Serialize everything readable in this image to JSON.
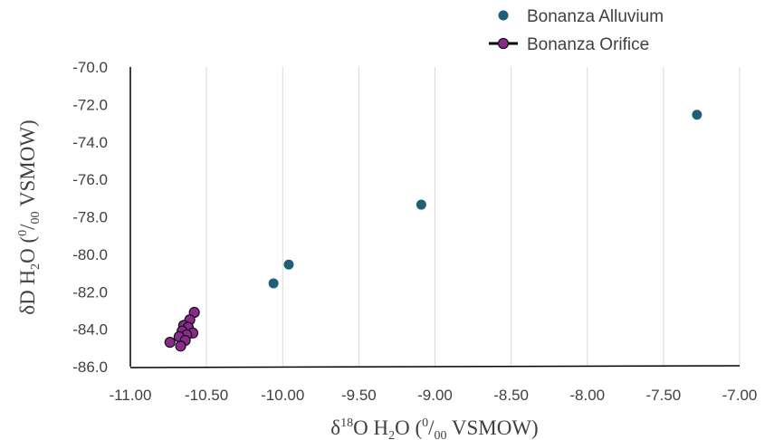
{
  "chart_data": {
    "type": "scatter",
    "xlabel": {
      "pre": "δ",
      "sup": "18",
      "mid": "O  H",
      "sub": "2",
      "post": "O (",
      "sup2": "0",
      "slash": "/",
      "sub2": "00",
      "end": " VSMOW)"
    },
    "ylabel": {
      "pre": "δD  H",
      "sub": "2",
      "post": "O (",
      "sup": "0",
      "slash": "/",
      "sub2": "00",
      "end": " VSMOW)"
    },
    "xlim": [
      -11.0,
      -7.0
    ],
    "ylim": [
      -86.0,
      -70.0
    ],
    "x_ticks": [
      -11.0,
      -10.5,
      -10.0,
      -9.5,
      -9.0,
      -8.5,
      -8.0,
      -7.5,
      -7.0
    ],
    "x_tick_labels": [
      "-11.00",
      "-10.50",
      "-10.00",
      "-9.50",
      "-9.00",
      "-8.50",
      "-8.00",
      "-7.50",
      "-7.00"
    ],
    "y_ticks": [
      -86.0,
      -84.0,
      -82.0,
      -80.0,
      -78.0,
      -76.0,
      -74.0,
      -72.0,
      -70.0
    ],
    "y_tick_labels": [
      "-86.0",
      "-84.0",
      "-82.0",
      "-80.0",
      "-78.0",
      "-76.0",
      "-74.0",
      "-72.0",
      "-70.0"
    ],
    "grid": "vertical",
    "legend_position": "top-right",
    "series": [
      {
        "name": "Bonanza Alluvium",
        "style": "markers",
        "color": "#1f5f7a",
        "points": [
          {
            "x": -7.28,
            "y": -72.55
          },
          {
            "x": -9.09,
            "y": -77.35
          },
          {
            "x": -9.96,
            "y": -80.55
          },
          {
            "x": -10.06,
            "y": -81.55
          }
        ]
      },
      {
        "name": "Bonanza Orifice",
        "style": "line-markers",
        "color": "#8a2a8e",
        "line_color": "#000000",
        "points": [
          {
            "x": -10.58,
            "y": -83.1
          },
          {
            "x": -10.61,
            "y": -83.5
          },
          {
            "x": -10.65,
            "y": -83.8
          },
          {
            "x": -10.62,
            "y": -83.9
          },
          {
            "x": -10.66,
            "y": -84.1
          },
          {
            "x": -10.59,
            "y": -84.2
          },
          {
            "x": -10.63,
            "y": -84.3
          },
          {
            "x": -10.68,
            "y": -84.4
          },
          {
            "x": -10.64,
            "y": -84.6
          },
          {
            "x": -10.74,
            "y": -84.7
          },
          {
            "x": -10.67,
            "y": -84.9
          }
        ],
        "trend_line": [
          {
            "x": -10.7,
            "y": -84.5
          },
          {
            "x": -10.61,
            "y": -83.8
          }
        ]
      }
    ]
  }
}
